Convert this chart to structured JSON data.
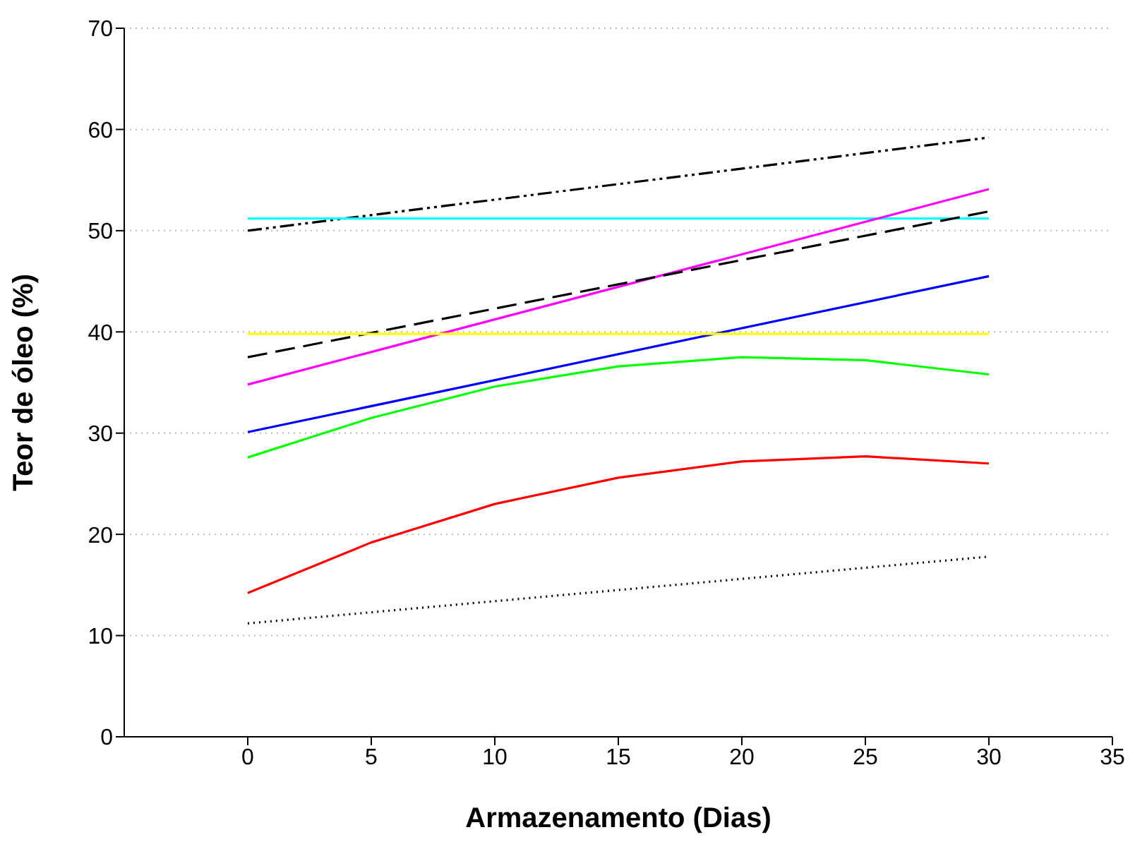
{
  "chart_data": {
    "type": "line",
    "xlabel": "Armazenamento (Dias)",
    "ylabel": "Teor de óleo (%)",
    "xlim": [
      -5,
      35
    ],
    "xticks": [
      0,
      5,
      10,
      15,
      20,
      25,
      30,
      35
    ],
    "ylim": [
      0,
      70
    ],
    "yticks": [
      0,
      10,
      20,
      30,
      40,
      50,
      60,
      70
    ],
    "grid": "y",
    "legend": false,
    "marker": "none",
    "series": [
      {
        "color": "#000000",
        "line_style": "dashdot",
        "x": [
          0,
          30
        ],
        "values": [
          50.0,
          59.2
        ]
      },
      {
        "color": "#00ffff",
        "line_style": "solid",
        "x": [
          0,
          30
        ],
        "values": [
          51.2,
          51.2
        ]
      },
      {
        "color": "#ff00ff",
        "line_style": "solid",
        "x": [
          0,
          30
        ],
        "values": [
          34.8,
          54.1
        ]
      },
      {
        "color": "#000000",
        "line_style": "dashed",
        "x": [
          0,
          30
        ],
        "values": [
          37.5,
          51.9
        ]
      },
      {
        "color": "#0000ff",
        "line_style": "solid",
        "x": [
          0,
          30
        ],
        "values": [
          30.1,
          45.5
        ]
      },
      {
        "color": "#ffff00",
        "line_style": "solid",
        "x": [
          0,
          30
        ],
        "values": [
          39.8,
          39.8
        ]
      },
      {
        "color": "#00ff00",
        "line_style": "solid",
        "x": [
          0,
          5,
          10,
          15,
          20,
          25,
          30
        ],
        "values": [
          27.6,
          31.5,
          34.6,
          36.6,
          37.5,
          37.2,
          35.8
        ]
      },
      {
        "color": "#ff0000",
        "line_style": "solid",
        "x": [
          0,
          5,
          10,
          15,
          20,
          25,
          30
        ],
        "values": [
          14.2,
          19.2,
          23.0,
          25.6,
          27.2,
          27.7,
          27.0
        ]
      },
      {
        "color": "#000000",
        "line_style": "dotted",
        "x": [
          0,
          30
        ],
        "values": [
          11.2,
          17.8
        ]
      }
    ]
  }
}
